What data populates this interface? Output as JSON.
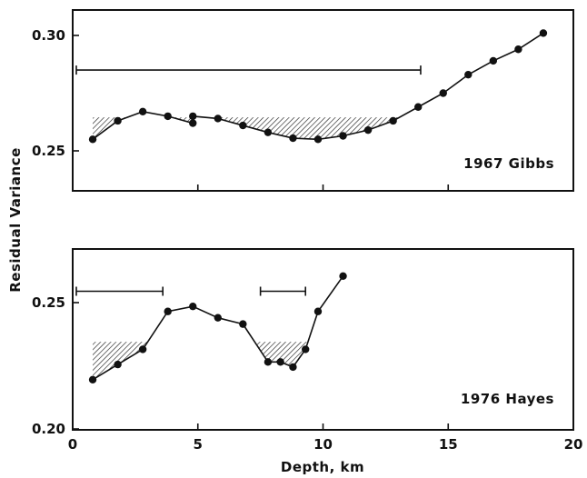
{
  "chart_data": [
    {
      "type": "line",
      "panel": "top",
      "label": "1967 Gibbs",
      "xlim": [
        0,
        20
      ],
      "ylim": [
        0.24,
        0.31
      ],
      "y_ticks": [
        0.25,
        0.3
      ],
      "y_tick_labels": [
        "0.25",
        "0.30"
      ],
      "x": [
        0.8,
        1.8,
        2.8,
        3.8,
        4.8,
        4.8,
        5.8,
        6.8,
        7.8,
        8.8,
        9.8,
        10.8,
        11.8,
        12.8,
        13.8,
        14.8,
        15.8,
        16.8,
        17.8,
        18.8
      ],
      "y": [
        0.255,
        0.263,
        0.267,
        0.265,
        0.262,
        0.265,
        0.264,
        0.261,
        0.258,
        0.2555,
        0.255,
        0.2565,
        0.259,
        0.263,
        0.269,
        0.275,
        0.283,
        0.289,
        0.294,
        0.301
      ],
      "hatch_level": 0.2645,
      "intervals": [
        [
          0.0,
          13.9
        ]
      ],
      "interval_y": 0.285
    },
    {
      "type": "line",
      "panel": "bottom",
      "label": "1976 Hayes",
      "xlim": [
        0,
        20
      ],
      "ylim": [
        0.2,
        0.263
      ],
      "y_ticks": [
        0.2,
        0.25
      ],
      "y_tick_labels": [
        "0.20",
        "0.25"
      ],
      "x": [
        0.8,
        1.8,
        2.8,
        3.8,
        4.8,
        5.8,
        6.8,
        7.8,
        8.3,
        8.8,
        9.3,
        9.8,
        10.8
      ],
      "y": [
        0.2195,
        0.2255,
        0.2315,
        0.2465,
        0.2485,
        0.244,
        0.2415,
        0.2265,
        0.2265,
        0.2245,
        0.2315,
        0.2465,
        0.2605
      ],
      "hatch_level": 0.2345,
      "intervals": [
        [
          0.0,
          3.6
        ],
        [
          7.5,
          9.3
        ]
      ],
      "interval_y": 0.2545
    }
  ],
  "axes": {
    "ylabel": "Residual Variance",
    "xlabel": "Depth, km",
    "x_ticks": [
      0,
      5,
      10,
      15,
      20
    ],
    "x_tick_labels": [
      "0",
      "5",
      "10",
      "15",
      "20"
    ]
  }
}
